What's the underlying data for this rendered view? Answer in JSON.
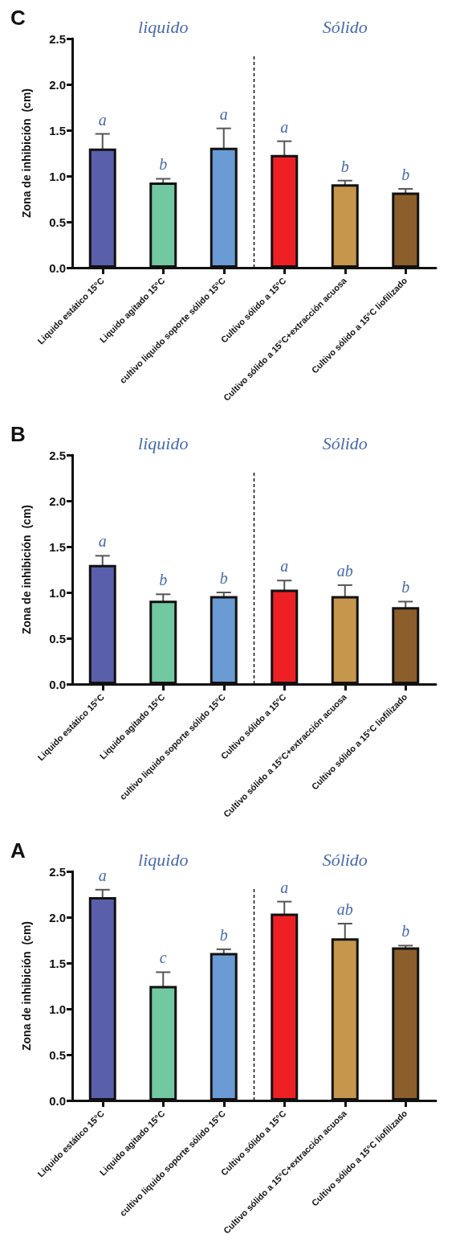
{
  "chart_data": [
    {
      "type": "bar",
      "title": "A",
      "ylabel": "Zona de inhibición  (cm)",
      "categories": [
        "Liquido estático 15°C",
        "Liquido agitado 15°C",
        "cultivo liquido soporte sólido 15°C",
        "Cultivo sólido a 15°C",
        "Cultivo sólido a 15°C+extracción acuosa",
        "Cultivo sólido a 15°C liofilizado"
      ],
      "values": [
        2.22,
        1.25,
        1.61,
        2.04,
        1.77,
        1.67
      ],
      "errors": [
        0.08,
        0.15,
        0.04,
        0.13,
        0.16,
        0.02
      ],
      "colors": [
        "#5a5fab",
        "#72c8a0",
        "#6a9bd4",
        "#ee2024",
        "#c6964c",
        "#8b5e2b"
      ],
      "ylim": [
        0,
        2.5
      ],
      "yticks": [
        {
          "value": 0,
          "label": "0.0"
        },
        0.5,
        {
          "value": 1,
          "label": "1.0"
        },
        1.5,
        {
          "value": 2,
          "label": "2.0"
        },
        2.5
      ],
      "annotations": [
        "liquido",
        "Sólido",
        "a",
        "c",
        "b",
        "a",
        "ab",
        "b"
      ],
      "grid": false
    },
    {
      "type": "bar",
      "title": "B",
      "ylabel": "Zona de inhibición  (cm)",
      "categories": [
        "Liquido estático 15°C",
        "Liquido agitado 15°C",
        "cultivo liquido soporte sólido 15°C",
        "Cultivo sólido a 15°C",
        "Cultivo sólido a 15°C+extracción acuosa",
        "Cultivo sólido a 15°C liofilizado"
      ],
      "values": [
        1.3,
        0.91,
        0.96,
        1.03,
        0.96,
        0.84
      ],
      "errors": [
        0.1,
        0.07,
        0.04,
        0.1,
        0.12,
        0.06
      ],
      "colors": [
        "#5a5fab",
        "#72c8a0",
        "#6a9bd4",
        "#ee2024",
        "#c6964c",
        "#8b5e2b"
      ],
      "ylim": [
        0,
        2.5
      ],
      "yticks": [
        {
          "value": 0,
          "label": "0.0"
        },
        0.5,
        {
          "value": 1,
          "label": "1.0"
        },
        1.5,
        {
          "value": 2,
          "label": "2.0"
        },
        2.5
      ],
      "annotations": [
        "liquido",
        "Sólido",
        "a",
        "b",
        "b",
        "a",
        "ab",
        "b"
      ],
      "grid": false
    },
    {
      "type": "bar",
      "title": "C",
      "ylabel": "Zona de inhibición  (cm)",
      "categories": [
        "Liquido estático 15°C",
        "Liquido agitado 15°C",
        "cultivo liquido soporte sólido 15°C",
        "Cultivo sólido a 15°C",
        "Cultivo sólido a 15°C+extracción acuosa",
        "Cultivo sólido a 15°C liofilizado"
      ],
      "values": [
        1.3,
        0.93,
        1.31,
        1.23,
        0.91,
        0.82
      ],
      "errors": [
        0.16,
        0.04,
        0.21,
        0.15,
        0.04,
        0.04
      ],
      "colors": [
        "#5a5fab",
        "#72c8a0",
        "#6a9bd4",
        "#ee2024",
        "#c6964c",
        "#8b5e2b"
      ],
      "ylim": [
        0,
        2.5
      ],
      "yticks": [
        {
          "value": 0,
          "label": "0.0"
        },
        0.5,
        {
          "value": 1,
          "label": "1.0"
        },
        1.5,
        {
          "value": 2,
          "label": "2.0"
        },
        2.5
      ],
      "annotations": [
        "liquido",
        "Sólido",
        "a",
        "b",
        "a",
        "a",
        "b",
        "b"
      ],
      "grid": false
    }
  ]
}
